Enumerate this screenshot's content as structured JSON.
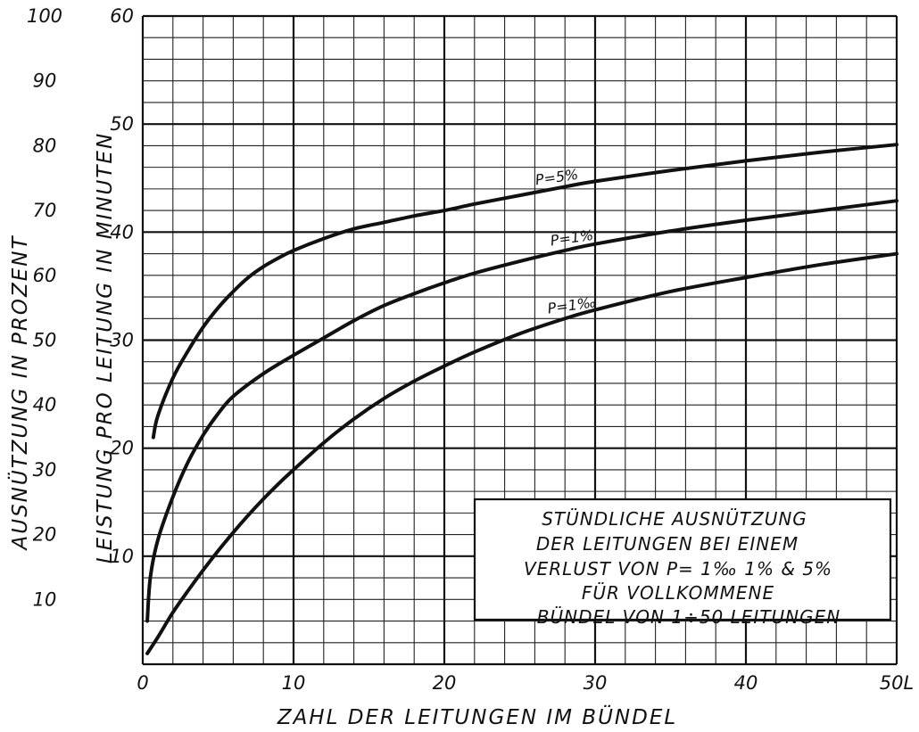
{
  "chart_data": {
    "type": "line",
    "xlabel": "ZAHL DER LEITUNGEN IM BÜNDEL",
    "ylabel": "LEISTUNG PRO LEITUNG IN MINUTEN",
    "ylabel_secondary": "AUSNÜTZUNG IN PROZENT",
    "xlim": [
      0,
      50
    ],
    "ylim": [
      0,
      60
    ],
    "ylim_secondary": [
      0,
      100
    ],
    "x_ticks": [
      "0",
      "10",
      "20",
      "30",
      "40",
      "50L"
    ],
    "y_ticks": [
      "10",
      "20",
      "30",
      "40",
      "50",
      "60"
    ],
    "y_ticks_secondary": [
      "10",
      "20",
      "30",
      "40",
      "50",
      "60",
      "70",
      "80",
      "90",
      "100"
    ],
    "grid": true,
    "series": [
      {
        "name": "P=5%",
        "x": [
          0.7,
          1,
          2,
          3,
          4,
          5,
          6,
          7,
          8,
          9,
          10,
          12,
          14,
          16,
          18,
          20,
          22,
          25,
          28,
          30,
          35,
          40,
          45,
          50
        ],
        "y": [
          21,
          23,
          26.5,
          29,
          31.2,
          33,
          34.5,
          35.8,
          36.8,
          37.6,
          38.3,
          39.4,
          40.3,
          40.9,
          41.5,
          42,
          42.6,
          43.4,
          44.2,
          44.7,
          45.7,
          46.6,
          47.4,
          48.1
        ]
      },
      {
        "name": "P=1%",
        "x": [
          0.3,
          0.5,
          1,
          2,
          3,
          4,
          5,
          6,
          8,
          10,
          12,
          14,
          16,
          18,
          20,
          22,
          25,
          28,
          30,
          35,
          40,
          45,
          50
        ],
        "y": [
          4,
          8,
          11.5,
          15.5,
          18.7,
          21.2,
          23.2,
          24.8,
          26.9,
          28.6,
          30.2,
          31.8,
          33.2,
          34.3,
          35.3,
          36.2,
          37.3,
          38.3,
          38.9,
          40.1,
          41.1,
          42,
          42.9
        ]
      },
      {
        "name": "P=1‰",
        "x": [
          0.3,
          1,
          2,
          3,
          4,
          5,
          6,
          7,
          8,
          9,
          10,
          12,
          14,
          16,
          18,
          20,
          22,
          25,
          28,
          30,
          35,
          40,
          45,
          50
        ],
        "y": [
          1,
          2.5,
          4.8,
          6.8,
          8.7,
          10.5,
          12.2,
          13.8,
          15.3,
          16.7,
          18,
          20.5,
          22.7,
          24.6,
          26.2,
          27.6,
          28.9,
          30.6,
          32,
          32.8,
          34.5,
          35.8,
          37,
          38
        ]
      }
    ],
    "annotation": [
      "STÜNDLICHE AUSNÜTZUNG",
      "DER LEITUNGEN BEI EINEM",
      "VERLUST VON P= 1‰  1% & 5%",
      "FÜR VOLLKOMMENE",
      "BÜNDEL VON 1÷50 LEITUNGEN"
    ]
  }
}
